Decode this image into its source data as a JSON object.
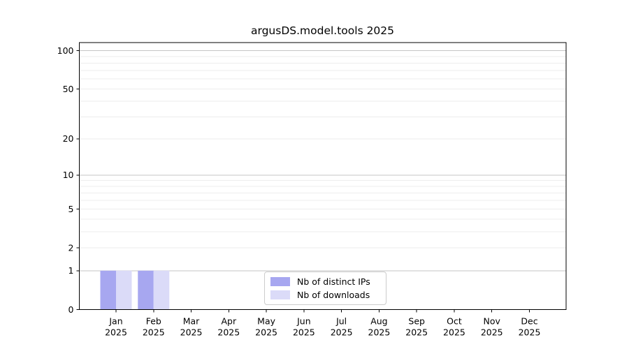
{
  "chart_data": {
    "type": "bar",
    "title": "argusDS.model.tools 2025",
    "categories": [
      "Jan",
      "Feb",
      "Mar",
      "Apr",
      "May",
      "Jun",
      "Jul",
      "Aug",
      "Sep",
      "Oct",
      "Nov",
      "Dec"
    ],
    "category_year": "2025",
    "series": [
      {
        "name": "Nb of distinct IPs",
        "color": "#a7a7f0",
        "values": [
          1,
          1,
          0,
          0,
          0,
          0,
          0,
          0,
          0,
          0,
          0,
          0
        ]
      },
      {
        "name": "Nb of downloads",
        "color": "#dbdbf8",
        "values": [
          1,
          1,
          0,
          0,
          0,
          0,
          0,
          0,
          0,
          0,
          0,
          0
        ]
      }
    ],
    "yscale": "log1p",
    "ylim": [
      0,
      115.6
    ],
    "yticks": [
      0,
      1,
      2,
      5,
      10,
      20,
      50,
      100
    ],
    "ygrid_major": [
      1,
      10,
      100
    ],
    "ygrid_minor": [
      2,
      3,
      4,
      5,
      6,
      7,
      8,
      9,
      20,
      30,
      40,
      50,
      60,
      70,
      80,
      90
    ],
    "grid": "horizontal",
    "legend": {
      "position": "lower-center",
      "entries": [
        "Nb of distinct IPs",
        "Nb of downloads"
      ]
    },
    "colors": {
      "grid_major": "#c6c6c6",
      "grid_minor": "#ededed",
      "spine": "#000000",
      "text": "#000000",
      "legend_border": "#cccccc"
    }
  }
}
